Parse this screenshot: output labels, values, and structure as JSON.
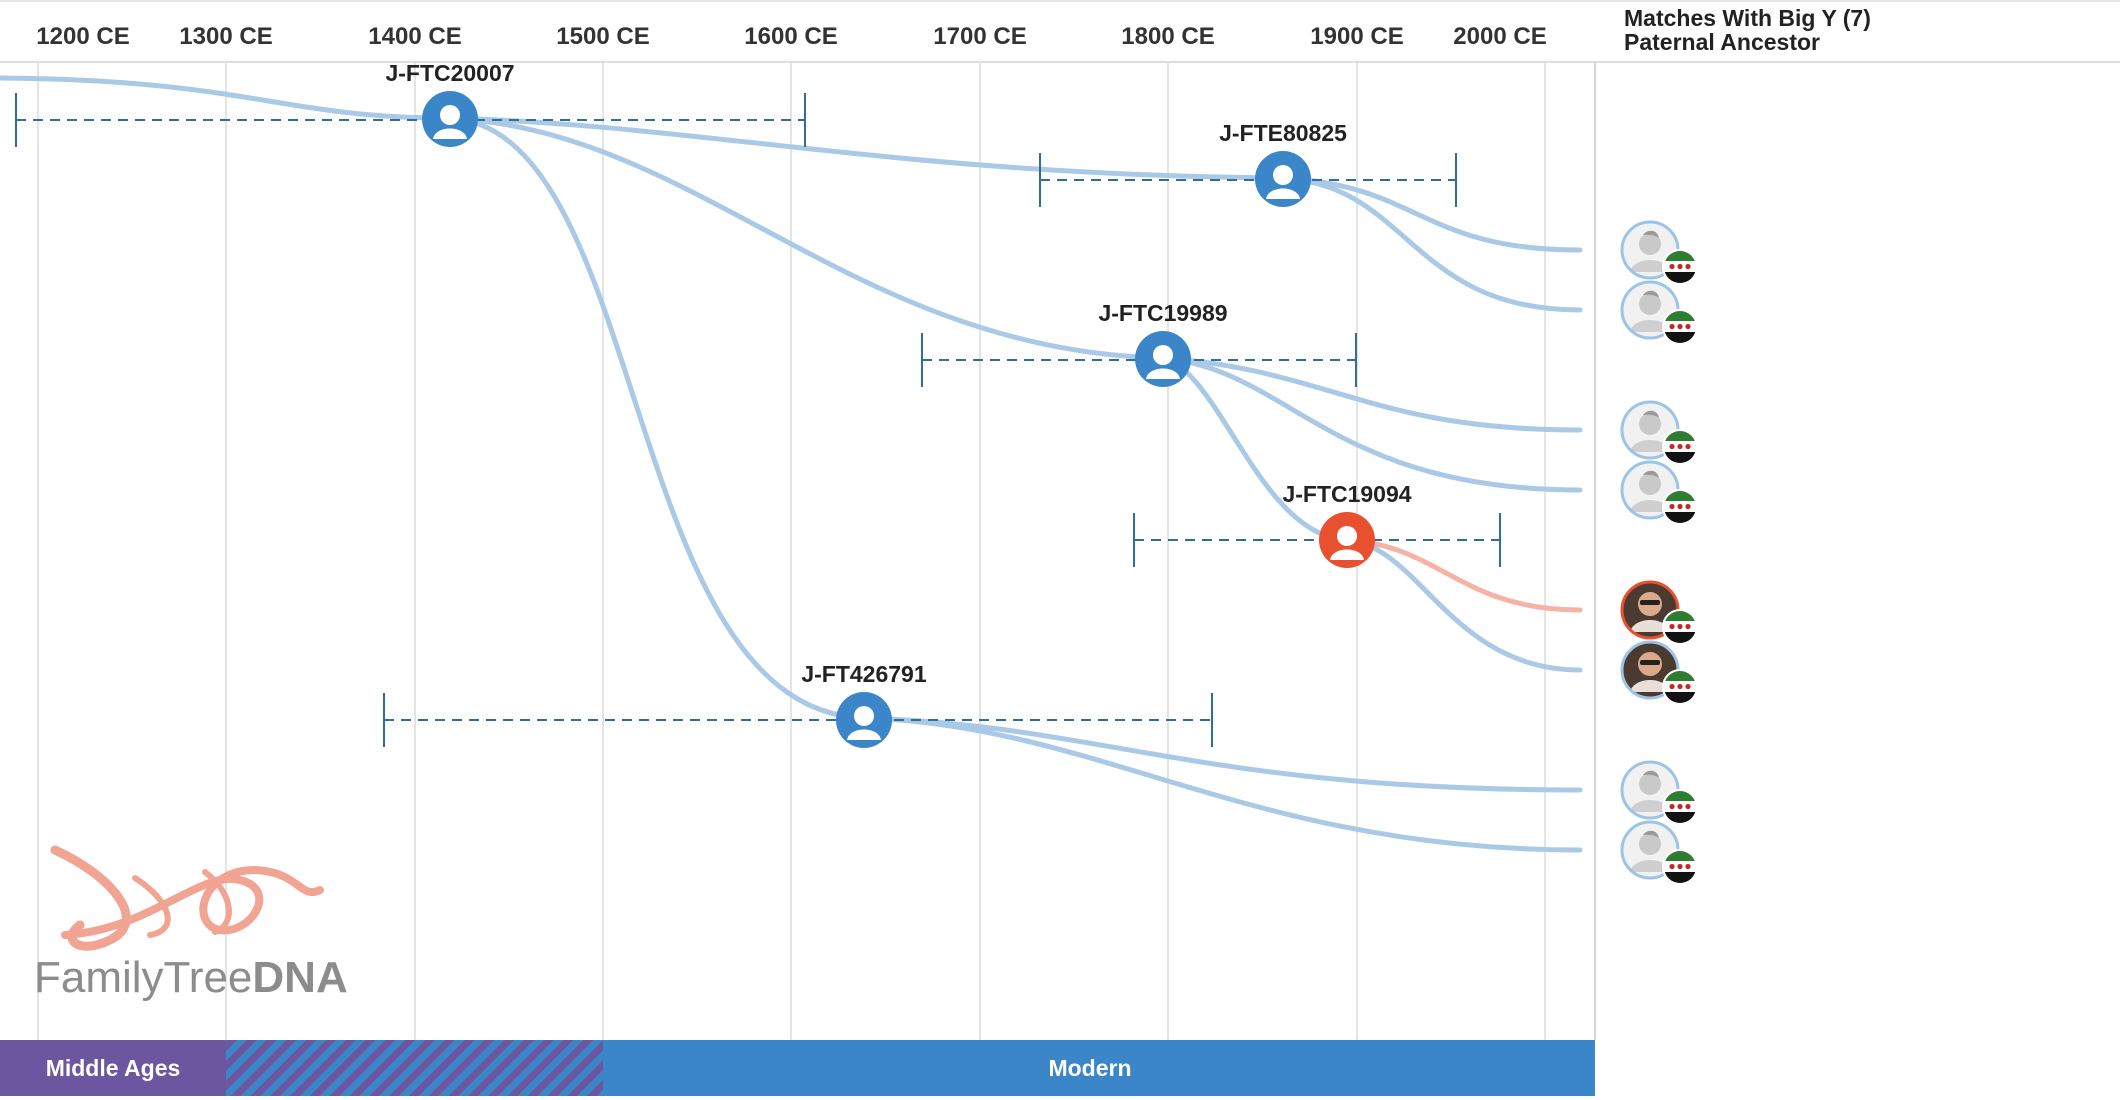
{
  "header": {
    "matches_label": "Matches With Big Y (7)",
    "ancestor_label": "Paternal Ancestor"
  },
  "timeline": {
    "ticks": [
      "1200 CE",
      "1300 CE",
      "1400 CE",
      "1500 CE",
      "1600 CE",
      "1700 CE",
      "1800 CE",
      "1900 CE",
      "2000 CE"
    ]
  },
  "nodes": [
    {
      "id": "J-FTC20007",
      "color": "#3a86c8"
    },
    {
      "id": "J-FTE80825",
      "color": "#3a86c8"
    },
    {
      "id": "J-FTC19989",
      "color": "#3a86c8"
    },
    {
      "id": "J-FTC19094",
      "color": "#e8502f"
    },
    {
      "id": "J-FT426791",
      "color": "#3a86c8"
    }
  ],
  "matches": [
    {
      "avatar": "placeholder",
      "flag": "green-white-black-three-red-stars"
    },
    {
      "avatar": "placeholder",
      "flag": "green-white-black-three-red-stars"
    },
    {
      "avatar": "placeholder",
      "flag": "green-white-black-three-red-stars"
    },
    {
      "avatar": "placeholder",
      "flag": "green-white-black-three-red-stars"
    },
    {
      "avatar": "photo",
      "highlight": true,
      "flag": "green-white-black-three-red-stars"
    },
    {
      "avatar": "photo",
      "flag": "green-white-black-three-red-stars"
    },
    {
      "avatar": "placeholder",
      "flag": "green-white-black-three-red-stars"
    },
    {
      "avatar": "placeholder",
      "flag": "green-white-black-three-red-stars"
    }
  ],
  "eras": [
    {
      "label": "Middle Ages",
      "color": "#6d56a0"
    },
    {
      "label": "",
      "color": "#6d56a0",
      "pattern": "striped"
    },
    {
      "label": "Modern",
      "color": "#3a86c8"
    }
  ],
  "logo": {
    "text_light": "FamilyTree",
    "text_bold": "DNA"
  },
  "colors": {
    "branch": "#a9c9e6",
    "branch_highlight": "#f4b3a4",
    "range_line": "#2f6e96",
    "node_blue": "#3a86c8",
    "node_orange": "#e8502f"
  }
}
